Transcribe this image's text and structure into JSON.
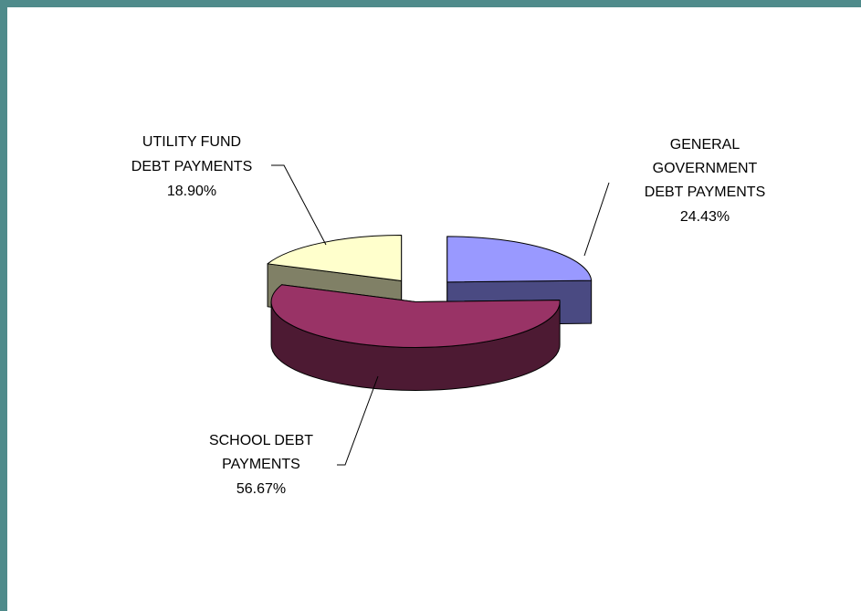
{
  "chart_data": {
    "type": "pie",
    "style": "3d-exploded",
    "slices": [
      {
        "name": "GENERAL GOVERNMENT DEBT PAYMENTS",
        "label_lines": [
          "GENERAL",
          "GOVERNMENT",
          "DEBT PAYMENTS"
        ],
        "value": 24.43,
        "value_label": "24.43%",
        "top_color": "#9999ff",
        "side_color": "#4a4a82"
      },
      {
        "name": "SCHOOL DEBT PAYMENTS",
        "label_lines": [
          "SCHOOL DEBT",
          "PAYMENTS"
        ],
        "value": 56.67,
        "value_label": "56.67%",
        "top_color": "#993366",
        "side_color": "#4d1a33"
      },
      {
        "name": "UTILITY FUND DEBT PAYMENTS",
        "label_lines": [
          "UTILITY FUND",
          "DEBT PAYMENTS"
        ],
        "value": 18.9,
        "value_label": "18.90%",
        "top_color": "#ffffcc",
        "side_color": "#808066"
      }
    ]
  },
  "colors": {
    "frame": "#4f8b8b",
    "background": "#ffffff"
  }
}
